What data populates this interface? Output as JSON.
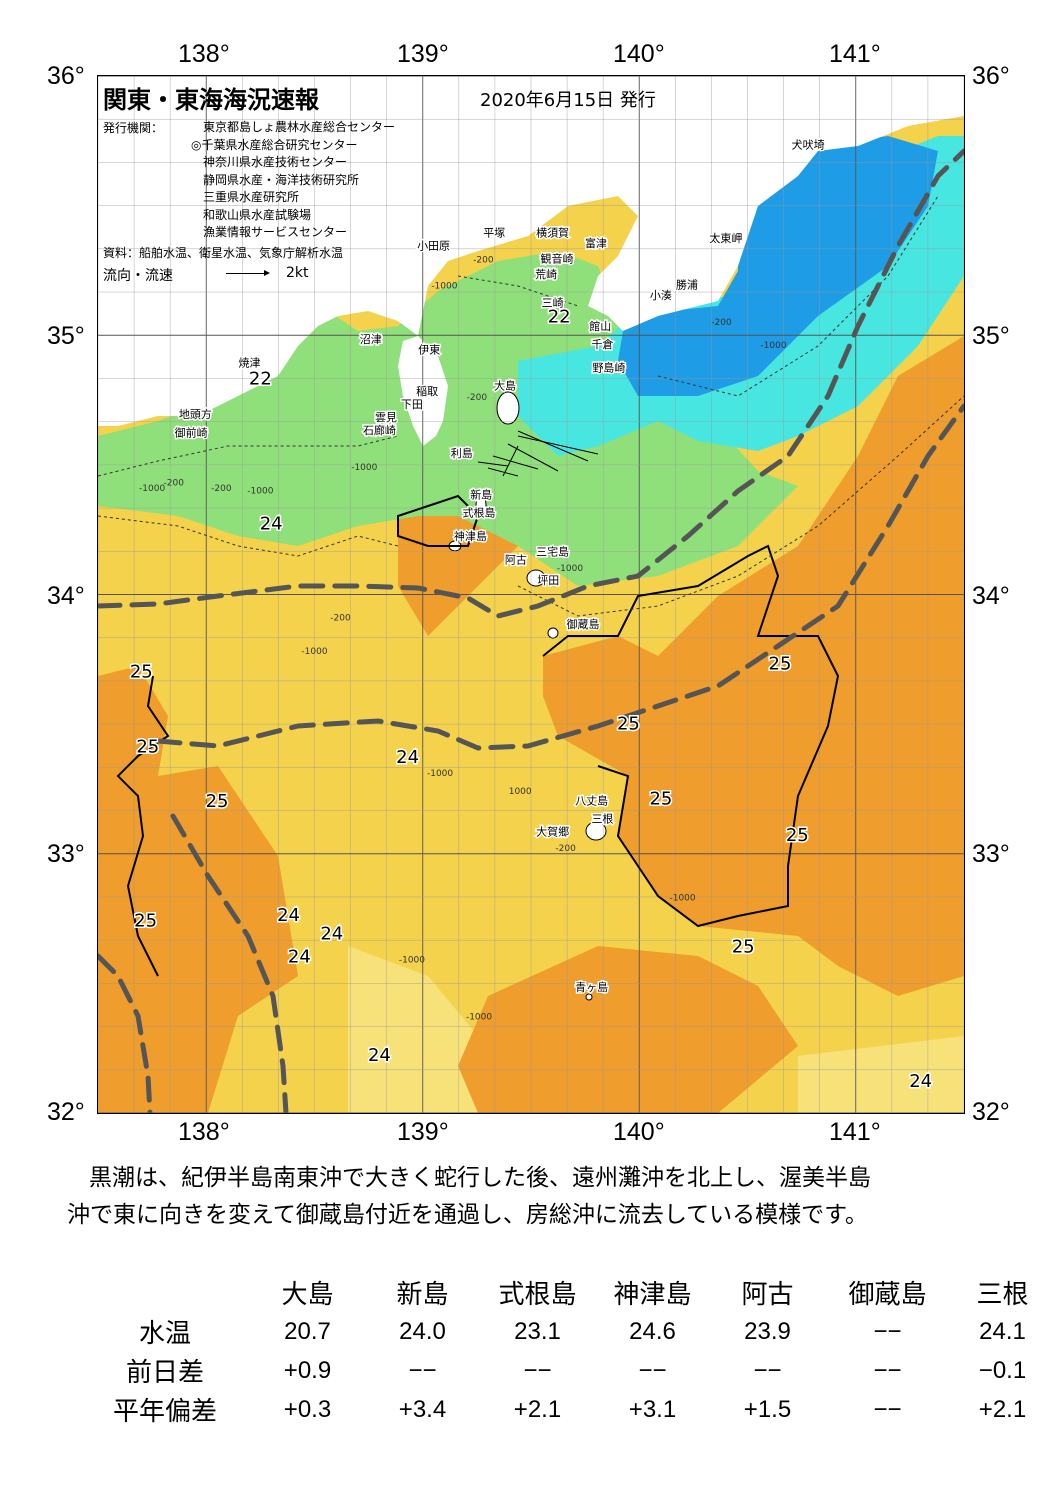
{
  "title": "関東・東海海況速報",
  "issue_date": "2020年6月15日 発行",
  "publishers_label": "発行機関：",
  "publishers": [
    "東京都島しょ農林水産総合センター",
    "◎千葉県水産総合研究センター",
    "神奈川県水産技術センター",
    "静岡県水産・海洋技術研究所",
    "三重県水産研究所",
    "和歌山県水産試験場",
    "漁業情報サービスセンター"
  ],
  "sources": "資料：船舶水温、衛星水温、気象庁解析水温",
  "current_legend": {
    "label": "流向・流速",
    "scale": "2kt"
  },
  "axes": {
    "lon_ticks": [
      "138°",
      "139°",
      "140°",
      "141°"
    ],
    "lat_ticks": [
      "36°",
      "35°",
      "34°",
      "33°",
      "32°"
    ],
    "lon_range": [
      137.5,
      141.5
    ],
    "lat_range": [
      32,
      36
    ]
  },
  "colors": {
    "warm_25": "#ef9d2c",
    "warm_24": "#f4d24c",
    "mid_22": "#8fe07a",
    "cool_20": "#47e6e0",
    "cold_18": "#1e9ce6",
    "land": "#ffffff",
    "kuroshio_axis": "#555555"
  },
  "place_names": [
    {
      "name": "犬吠埼",
      "lon": 140.78,
      "lat": 35.72
    },
    {
      "name": "太東岬",
      "lon": 140.4,
      "lat": 35.36
    },
    {
      "name": "勝浦",
      "lon": 140.22,
      "lat": 35.18
    },
    {
      "name": "小湊",
      "lon": 140.1,
      "lat": 35.14
    },
    {
      "name": "富津",
      "lon": 139.8,
      "lat": 35.34
    },
    {
      "name": "横須賀",
      "lon": 139.6,
      "lat": 35.38
    },
    {
      "name": "平塚",
      "lon": 139.33,
      "lat": 35.38
    },
    {
      "name": "小田原",
      "lon": 139.05,
      "lat": 35.33
    },
    {
      "name": "観音崎",
      "lon": 139.62,
      "lat": 35.28
    },
    {
      "name": "荒崎",
      "lon": 139.57,
      "lat": 35.22
    },
    {
      "name": "三崎",
      "lon": 139.6,
      "lat": 35.11
    },
    {
      "name": "館山",
      "lon": 139.82,
      "lat": 35.02
    },
    {
      "name": "千倉",
      "lon": 139.83,
      "lat": 34.95
    },
    {
      "name": "野島崎",
      "lon": 139.86,
      "lat": 34.86
    },
    {
      "name": "沼津",
      "lon": 138.76,
      "lat": 34.97
    },
    {
      "name": "伊東",
      "lon": 139.03,
      "lat": 34.93
    },
    {
      "name": "焼津",
      "lon": 138.2,
      "lat": 34.88
    },
    {
      "name": "大島",
      "lon": 139.38,
      "lat": 34.79
    },
    {
      "name": "稲取",
      "lon": 139.02,
      "lat": 34.77
    },
    {
      "name": "下田",
      "lon": 138.95,
      "lat": 34.72
    },
    {
      "name": "雲見",
      "lon": 138.83,
      "lat": 34.67
    },
    {
      "name": "石廊崎",
      "lon": 138.8,
      "lat": 34.62
    },
    {
      "name": "地頭方",
      "lon": 137.95,
      "lat": 34.68
    },
    {
      "name": "御前崎",
      "lon": 137.93,
      "lat": 34.61
    },
    {
      "name": "利島",
      "lon": 139.18,
      "lat": 34.53
    },
    {
      "name": "新島",
      "lon": 139.27,
      "lat": 34.37
    },
    {
      "name": "式根島",
      "lon": 139.26,
      "lat": 34.3
    },
    {
      "name": "神津島",
      "lon": 139.22,
      "lat": 34.21
    },
    {
      "name": "三宅島",
      "lon": 139.6,
      "lat": 34.15
    },
    {
      "name": "阿古",
      "lon": 139.43,
      "lat": 34.12
    },
    {
      "name": "坪田",
      "lon": 139.58,
      "lat": 34.04
    },
    {
      "name": "御蔵島",
      "lon": 139.74,
      "lat": 33.87
    },
    {
      "name": "八丈島",
      "lon": 139.78,
      "lat": 33.19
    },
    {
      "name": "三根",
      "lon": 139.83,
      "lat": 33.12
    },
    {
      "name": "大賀郷",
      "lon": 139.6,
      "lat": 33.07
    },
    {
      "name": "青ヶ島",
      "lon": 139.78,
      "lat": 32.47
    }
  ],
  "temperature_labels": [
    {
      "value": "22",
      "lon": 139.63,
      "lat": 35.05
    },
    {
      "value": "22",
      "lon": 138.25,
      "lat": 34.81
    },
    {
      "value": "24",
      "lon": 138.3,
      "lat": 34.25
    },
    {
      "value": "25",
      "lon": 137.7,
      "lat": 33.68
    },
    {
      "value": "25",
      "lon": 137.73,
      "lat": 33.39
    },
    {
      "value": "25",
      "lon": 138.05,
      "lat": 33.18
    },
    {
      "value": "24",
      "lon": 138.93,
      "lat": 33.35
    },
    {
      "value": "25",
      "lon": 137.72,
      "lat": 32.72
    },
    {
      "value": "24",
      "lon": 138.38,
      "lat": 32.74
    },
    {
      "value": "24",
      "lon": 138.58,
      "lat": 32.67
    },
    {
      "value": "24",
      "lon": 138.43,
      "lat": 32.58
    },
    {
      "value": "24",
      "lon": 138.8,
      "lat": 32.2
    },
    {
      "value": "25",
      "lon": 139.95,
      "lat": 33.48
    },
    {
      "value": "25",
      "lon": 140.1,
      "lat": 33.19
    },
    {
      "value": "25",
      "lon": 140.65,
      "lat": 33.71
    },
    {
      "value": "25",
      "lon": 140.73,
      "lat": 33.05
    },
    {
      "value": "25",
      "lon": 140.48,
      "lat": 32.62
    },
    {
      "value": "24",
      "lon": 141.3,
      "lat": 32.1
    }
  ],
  "depth_labels": [
    {
      "value": "-200",
      "lon": 139.28,
      "lat": 35.28
    },
    {
      "value": "-1000",
      "lon": 139.1,
      "lat": 35.18
    },
    {
      "value": "-200",
      "lon": 140.38,
      "lat": 35.04
    },
    {
      "value": "-1000",
      "lon": 140.62,
      "lat": 34.95
    },
    {
      "value": "-200",
      "lon": 139.25,
      "lat": 34.75
    },
    {
      "value": "-1000",
      "lon": 138.73,
      "lat": 34.48
    },
    {
      "value": "-1000",
      "lon": 138.25,
      "lat": 34.39
    },
    {
      "value": "-200",
      "lon": 137.85,
      "lat": 34.42
    },
    {
      "value": "-1000",
      "lon": 137.75,
      "lat": 34.4
    },
    {
      "value": "-200",
      "lon": 138.07,
      "lat": 34.4
    },
    {
      "value": "-1000",
      "lon": 139.68,
      "lat": 34.09
    },
    {
      "value": "-200",
      "lon": 138.62,
      "lat": 33.9
    },
    {
      "value": "-1000",
      "lon": 138.5,
      "lat": 33.77
    },
    {
      "value": "-1000",
      "lon": 139.08,
      "lat": 33.3
    },
    {
      "value": "1000",
      "lon": 139.45,
      "lat": 33.23
    },
    {
      "value": "-200",
      "lon": 139.66,
      "lat": 33.01
    },
    {
      "value": "-1000",
      "lon": 140.2,
      "lat": 32.82
    },
    {
      "value": "-1000",
      "lon": 138.95,
      "lat": 32.58
    },
    {
      "value": "-1000",
      "lon": 139.26,
      "lat": 32.36
    }
  ],
  "summary": [
    "黒潮は、紀伊半島南東沖で大きく蛇行した後、遠州灘沖を北上し、渥美半島",
    "沖で東に向きを変えて御蔵島付近を通過し、房総沖に流去している模様です。"
  ],
  "observations": {
    "stations": [
      "大島",
      "新島",
      "式根島",
      "神津島",
      "阿古",
      "御蔵島",
      "三根"
    ],
    "rows": [
      {
        "label": "水温",
        "values": [
          "20.7",
          "24.0",
          "23.1",
          "24.6",
          "23.9",
          "−−",
          "24.1"
        ]
      },
      {
        "label": "前日差",
        "values": [
          "+0.9",
          "−−",
          "−−",
          "−−",
          "−−",
          "−−",
          "−0.1"
        ]
      },
      {
        "label": "平年偏差",
        "values": [
          "+0.3",
          "+3.4",
          "+2.1",
          "+3.1",
          "+1.5",
          "−−",
          "+2.1"
        ]
      }
    ]
  }
}
